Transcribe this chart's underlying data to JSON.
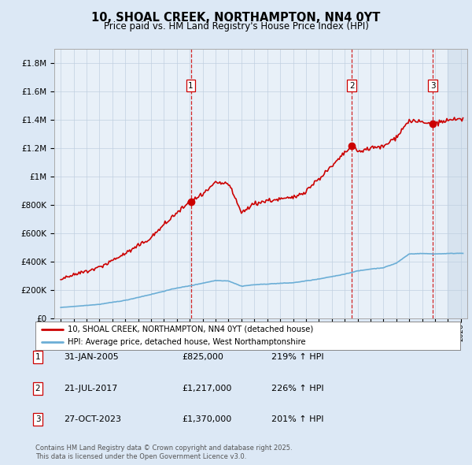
{
  "title": "10, SHOAL CREEK, NORTHAMPTON, NN4 0YT",
  "subtitle": "Price paid vs. HM Land Registry's House Price Index (HPI)",
  "legend_line1": "10, SHOAL CREEK, NORTHAMPTON, NN4 0YT (detached house)",
  "legend_line2": "HPI: Average price, detached house, West Northamptonshire",
  "footer1": "Contains HM Land Registry data © Crown copyright and database right 2025.",
  "footer2": "This data is licensed under the Open Government Licence v3.0.",
  "sales": [
    {
      "label": "1",
      "date_str": "31-JAN-2005",
      "date_num": 2005.08,
      "price": 825000,
      "pct": "219%",
      "dir": "↑"
    },
    {
      "label": "2",
      "date_str": "21-JUL-2017",
      "date_num": 2017.55,
      "price": 1217000,
      "pct": "226%",
      "dir": "↑"
    },
    {
      "label": "3",
      "date_str": "27-OCT-2023",
      "date_num": 2023.82,
      "price": 1370000,
      "pct": "201%",
      "dir": "↑"
    }
  ],
  "hpi_color": "#6baed6",
  "price_color": "#cc0000",
  "bg_color": "#dce8f5",
  "plot_bg": "#e8f0f8",
  "grid_color": "#c0cfe0",
  "dashed_color": "#cc0000",
  "ylim_max": 1900000,
  "xlim_min": 1994.5,
  "xlim_max": 2026.5,
  "hpi_anchors_x": [
    1995,
    1996,
    1998,
    2000,
    2002,
    2004,
    2005,
    2007,
    2008,
    2009,
    2010,
    2012,
    2013,
    2015,
    2016,
    2017,
    2018,
    2019,
    2020,
    2021,
    2022,
    2023,
    2024,
    2025,
    2026
  ],
  "hpi_anchors_y": [
    78000,
    85000,
    100000,
    128000,
    170000,
    215000,
    230000,
    268000,
    265000,
    228000,
    238000,
    248000,
    252000,
    278000,
    295000,
    313000,
    335000,
    348000,
    358000,
    390000,
    455000,
    458000,
    455000,
    458000,
    460000
  ],
  "price_anchors_x": [
    1995,
    1996,
    1998,
    2000,
    2001,
    2002,
    2003,
    2004,
    2005.08,
    2006,
    2007,
    2008,
    2009,
    2010,
    2011,
    2012,
    2013,
    2014,
    2015,
    2016,
    2017.55,
    2018,
    2019,
    2020,
    2021,
    2022,
    2023.82,
    2024,
    2025,
    2026
  ],
  "price_anchors_y": [
    278000,
    305000,
    360000,
    458000,
    510000,
    570000,
    660000,
    745000,
    825000,
    870000,
    955000,
    950000,
    745000,
    810000,
    830000,
    840000,
    850000,
    900000,
    985000,
    1070000,
    1217000,
    1175000,
    1200000,
    1210000,
    1280000,
    1395000,
    1370000,
    1375000,
    1395000,
    1400000
  ]
}
